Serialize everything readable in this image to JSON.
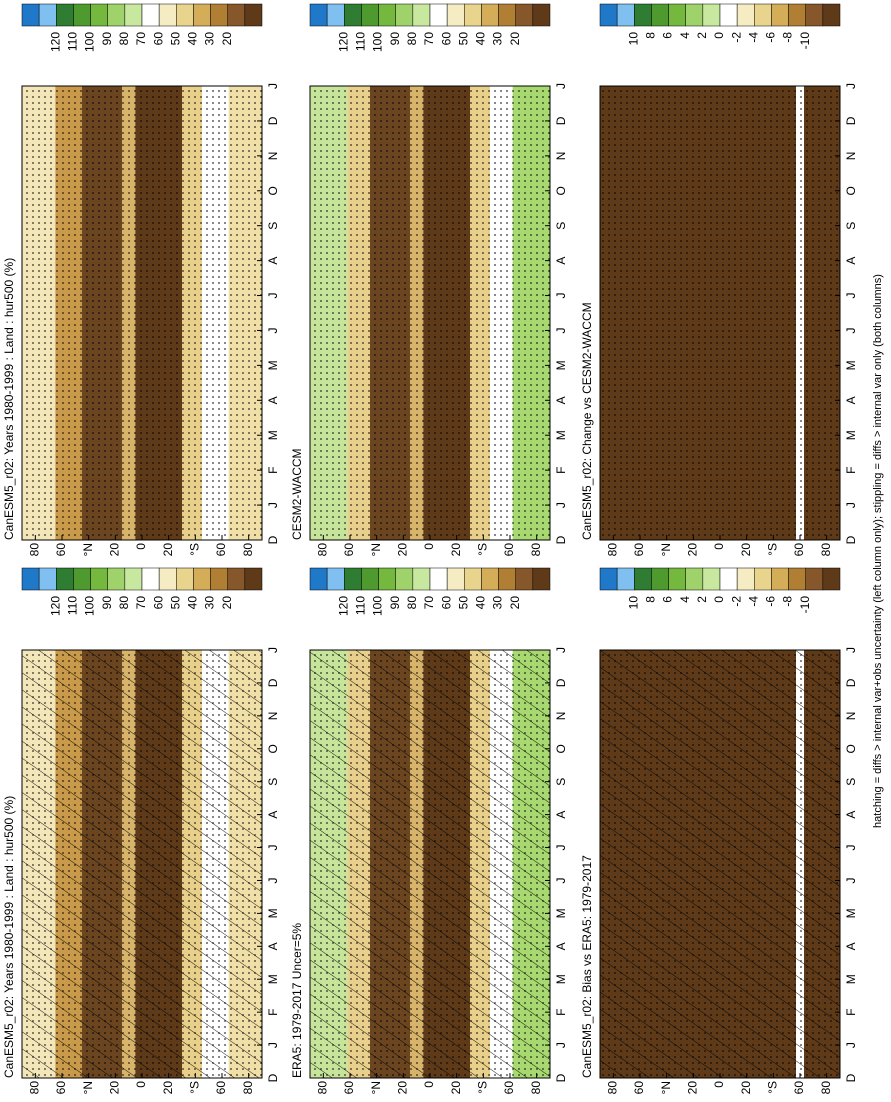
{
  "chart_data": [
    {
      "type": "contour",
      "title": "CanESM5_r02: Years 1980-1999 : Land : hur500 (%)",
      "categories": [
        "D",
        "J",
        "F",
        "M",
        "A",
        "M",
        "J",
        "J",
        "A",
        "S",
        "O",
        "N",
        "D",
        "J"
      ],
      "ylim": [
        -90,
        90
      ],
      "yticks": [
        {
          "value": 80,
          "label": "80"
        },
        {
          "value": 60,
          "label": "60"
        },
        {
          "value": 40,
          "label": "°N"
        },
        {
          "value": 20,
          "label": "20"
        },
        {
          "value": 0,
          "label": "0"
        },
        {
          "value": -20,
          "label": "20"
        },
        {
          "value": -40,
          "label": "°S"
        },
        {
          "value": -60,
          "label": "60"
        },
        {
          "value": -80,
          "label": "80"
        }
      ],
      "colorbar": {
        "ticks": [
          120,
          110,
          100,
          90,
          80,
          70,
          60,
          50,
          40,
          30,
          20
        ],
        "colors": [
          "#1f78c8",
          "#7fc0f0",
          "#2e7d32",
          "#4f9a2f",
          "#74b83e",
          "#9fd26a",
          "#c8e8a0",
          "#ffffff",
          "#f5ecc4",
          "#e9d48e",
          "#d4ad58",
          "#b07f33",
          "#86572a",
          "#5e3a18"
        ]
      },
      "hatching": true,
      "stippling": true
    },
    {
      "type": "contour",
      "title": "ERA5: 1979-2017 Uncer=5%",
      "categories": [
        "D",
        "J",
        "F",
        "M",
        "A",
        "M",
        "J",
        "J",
        "A",
        "S",
        "O",
        "N",
        "D",
        "J"
      ],
      "ylim": [
        -90,
        90
      ],
      "yticks": [
        {
          "value": 80,
          "label": "80"
        },
        {
          "value": 60,
          "label": "60"
        },
        {
          "value": 40,
          "label": "°N"
        },
        {
          "value": 20,
          "label": "20"
        },
        {
          "value": 0,
          "label": "0"
        },
        {
          "value": -20,
          "label": "20"
        },
        {
          "value": -40,
          "label": "°S"
        },
        {
          "value": -60,
          "label": "60"
        },
        {
          "value": -80,
          "label": "80"
        }
      ],
      "colorbar": {
        "ticks": [
          120,
          110,
          100,
          90,
          80,
          70,
          60,
          50,
          40,
          30,
          20
        ],
        "colors": [
          "#1f78c8",
          "#7fc0f0",
          "#2e7d32",
          "#4f9a2f",
          "#74b83e",
          "#9fd26a",
          "#c8e8a0",
          "#ffffff",
          "#f5ecc4",
          "#e9d48e",
          "#d4ad58",
          "#b07f33",
          "#86572a",
          "#5e3a18"
        ]
      },
      "hatching": true,
      "stippling": true
    },
    {
      "type": "contour",
      "title": "CanESM5_r02: Bias vs ERA5: 1979-2017",
      "categories": [
        "D",
        "J",
        "F",
        "M",
        "A",
        "M",
        "J",
        "J",
        "A",
        "S",
        "O",
        "N",
        "D",
        "J"
      ],
      "ylim": [
        -90,
        90
      ],
      "yticks": [
        {
          "value": 80,
          "label": "80"
        },
        {
          "value": 60,
          "label": "60"
        },
        {
          "value": 40,
          "label": "°N"
        },
        {
          "value": 20,
          "label": "20"
        },
        {
          "value": 0,
          "label": "0"
        },
        {
          "value": -20,
          "label": "20"
        },
        {
          "value": -40,
          "label": "°S"
        },
        {
          "value": -60,
          "label": "60"
        },
        {
          "value": -80,
          "label": "80"
        }
      ],
      "colorbar": {
        "ticks": [
          10,
          8,
          6,
          4,
          2,
          0,
          -2,
          -4,
          -6,
          -8,
          -10
        ],
        "colors": [
          "#1f78c8",
          "#7fc0f0",
          "#2e7d32",
          "#4f9a2f",
          "#74b83e",
          "#9fd26a",
          "#c8e8a0",
          "#ffffff",
          "#f5ecc4",
          "#e9d48e",
          "#d4ad58",
          "#b07f33",
          "#86572a",
          "#5e3a18"
        ]
      },
      "hatching": true,
      "stippling": true
    },
    {
      "type": "contour",
      "title": "CanESM5_r02: Years 1980-1999 : Land : hur500 (%)",
      "categories": [
        "D",
        "J",
        "F",
        "M",
        "A",
        "M",
        "J",
        "J",
        "A",
        "S",
        "O",
        "N",
        "D",
        "J"
      ],
      "ylim": [
        -90,
        90
      ],
      "yticks": [
        {
          "value": 80,
          "label": "80"
        },
        {
          "value": 60,
          "label": "60"
        },
        {
          "value": 40,
          "label": "°N"
        },
        {
          "value": 20,
          "label": "20"
        },
        {
          "value": 0,
          "label": "0"
        },
        {
          "value": -20,
          "label": "20"
        },
        {
          "value": -40,
          "label": "°S"
        },
        {
          "value": -60,
          "label": "60"
        },
        {
          "value": -80,
          "label": "80"
        }
      ],
      "colorbar": {
        "ticks": [
          120,
          110,
          100,
          90,
          80,
          70,
          60,
          50,
          40,
          30,
          20
        ],
        "colors": [
          "#1f78c8",
          "#7fc0f0",
          "#2e7d32",
          "#4f9a2f",
          "#74b83e",
          "#9fd26a",
          "#c8e8a0",
          "#ffffff",
          "#f5ecc4",
          "#e9d48e",
          "#d4ad58",
          "#b07f33",
          "#86572a",
          "#5e3a18"
        ]
      },
      "hatching": false,
      "stippling": true
    },
    {
      "type": "contour",
      "title": "CESM2-WACCM",
      "categories": [
        "D",
        "J",
        "F",
        "M",
        "A",
        "M",
        "J",
        "J",
        "A",
        "S",
        "O",
        "N",
        "D",
        "J"
      ],
      "ylim": [
        -90,
        90
      ],
      "yticks": [
        {
          "value": 80,
          "label": "80"
        },
        {
          "value": 60,
          "label": "60"
        },
        {
          "value": 40,
          "label": "°N"
        },
        {
          "value": 20,
          "label": "20"
        },
        {
          "value": 0,
          "label": "0"
        },
        {
          "value": -20,
          "label": "20"
        },
        {
          "value": -40,
          "label": "°S"
        },
        {
          "value": -60,
          "label": "60"
        },
        {
          "value": -80,
          "label": "80"
        }
      ],
      "colorbar": {
        "ticks": [
          120,
          110,
          100,
          90,
          80,
          70,
          60,
          50,
          40,
          30,
          20
        ],
        "colors": [
          "#1f78c8",
          "#7fc0f0",
          "#2e7d32",
          "#4f9a2f",
          "#74b83e",
          "#9fd26a",
          "#c8e8a0",
          "#ffffff",
          "#f5ecc4",
          "#e9d48e",
          "#d4ad58",
          "#b07f33",
          "#86572a",
          "#5e3a18"
        ]
      },
      "hatching": false,
      "stippling": true
    },
    {
      "type": "contour",
      "title": "CanESM5_r02: Change vs CESM2-WACCM",
      "categories": [
        "D",
        "J",
        "F",
        "M",
        "A",
        "M",
        "J",
        "J",
        "A",
        "S",
        "O",
        "N",
        "D",
        "J"
      ],
      "ylim": [
        -90,
        90
      ],
      "yticks": [
        {
          "value": 80,
          "label": "80"
        },
        {
          "value": 60,
          "label": "60"
        },
        {
          "value": 40,
          "label": "°N"
        },
        {
          "value": 20,
          "label": "20"
        },
        {
          "value": 0,
          "label": "0"
        },
        {
          "value": -20,
          "label": "20"
        },
        {
          "value": -40,
          "label": "°S"
        },
        {
          "value": -60,
          "label": "60"
        },
        {
          "value": -80,
          "label": "80"
        }
      ],
      "colorbar": {
        "ticks": [
          10,
          8,
          6,
          4,
          2,
          0,
          -2,
          -4,
          -6,
          -8,
          -10
        ],
        "colors": [
          "#1f78c8",
          "#7fc0f0",
          "#2e7d32",
          "#4f9a2f",
          "#74b83e",
          "#9fd26a",
          "#c8e8a0",
          "#ffffff",
          "#f5ecc4",
          "#e9d48e",
          "#d4ad58",
          "#b07f33",
          "#86572a",
          "#5e3a18"
        ]
      },
      "hatching": false,
      "stippling": true
    }
  ],
  "footnote": "hatching = diffs > internal var+obs uncertainty (left column only); stippling = diffs > internal var only (both columns)"
}
